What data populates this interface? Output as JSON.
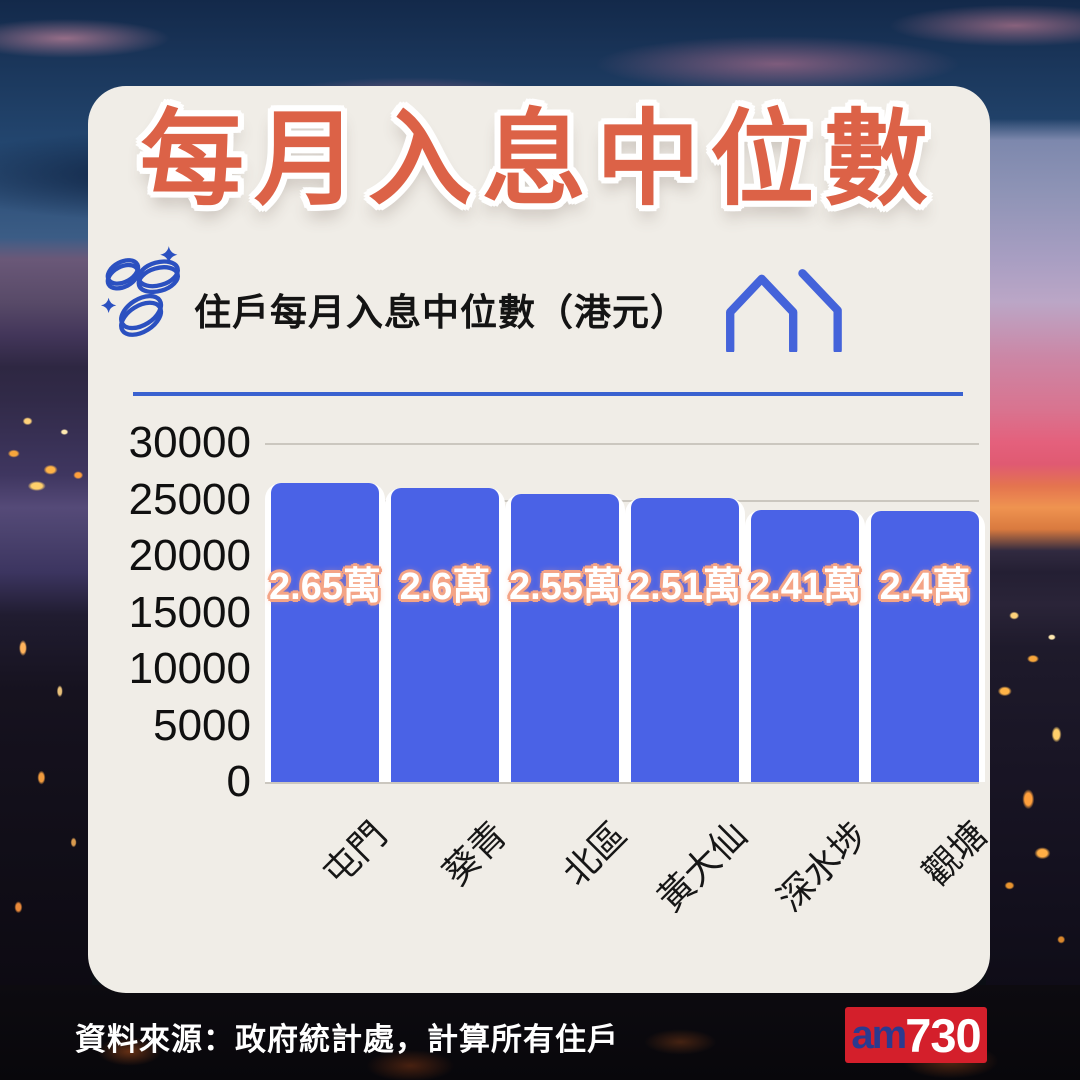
{
  "title": "每月入息中位數",
  "subtitle": "住戶每月入息中位數（港元）",
  "source": "資料來源：政府統計處，計算所有住戶",
  "logo": {
    "prefix": "am",
    "suffix": "730"
  },
  "icons": {
    "left": "coins-sparkle-icon",
    "right": "house-icon"
  },
  "colors": {
    "accent_title": "#DC6247",
    "bar": "#4A62E6",
    "value_glow": "#F4A486",
    "underline": "#3A62D0",
    "icon_blue": "#2B50C0",
    "house_blue": "#4463DA",
    "card_bg": "#F0EDE7",
    "logo_red": "#D41F2B",
    "logo_blue": "#2B3A8F"
  },
  "chart_data": {
    "type": "bar",
    "title": "住戶每月入息中位數（港元）",
    "categories": [
      "屯門",
      "葵青",
      "北區",
      "黃大仙",
      "深水埗",
      "觀塘"
    ],
    "values": [
      26500,
      26000,
      25500,
      25100,
      24100,
      24000
    ],
    "bar_labels": [
      "2.65萬",
      "2.6萬",
      "2.55萬",
      "2.51萬",
      "2.41萬",
      "2.4萬"
    ],
    "xlabel": "",
    "ylabel": "",
    "yticks": [
      0,
      5000,
      10000,
      15000,
      20000,
      25000,
      30000
    ],
    "ylim": [
      0,
      30000
    ],
    "grid": true,
    "legend": false,
    "xtick_rotation": 45
  }
}
